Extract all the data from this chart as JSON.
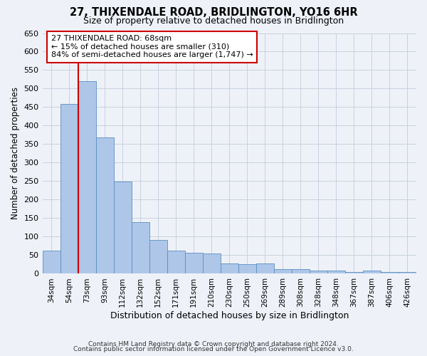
{
  "title": "27, THIXENDALE ROAD, BRIDLINGTON, YO16 6HR",
  "subtitle": "Size of property relative to detached houses in Bridlington",
  "xlabel": "Distribution of detached houses by size in Bridlington",
  "ylabel": "Number of detached properties",
  "bar_labels": [
    "34sqm",
    "54sqm",
    "73sqm",
    "93sqm",
    "112sqm",
    "132sqm",
    "152sqm",
    "171sqm",
    "191sqm",
    "210sqm",
    "230sqm",
    "250sqm",
    "269sqm",
    "289sqm",
    "308sqm",
    "328sqm",
    "348sqm",
    "367sqm",
    "387sqm",
    "406sqm",
    "426sqm"
  ],
  "bar_values": [
    63,
    458,
    521,
    369,
    249,
    140,
    92,
    63,
    57,
    55,
    27,
    26,
    27,
    12,
    12,
    8,
    8,
    5,
    8,
    5,
    5
  ],
  "bar_color": "#aec6e8",
  "bar_edge_color": "#5a8fc2",
  "vline_color": "#cc0000",
  "vline_x": 1.5,
  "annotation_text": "27 THIXENDALE ROAD: 68sqm\n← 15% of detached houses are smaller (310)\n84% of semi-detached houses are larger (1,747) →",
  "annotation_box_color": "#ffffff",
  "annotation_box_edge_color": "#cc0000",
  "ylim": [
    0,
    650
  ],
  "yticks": [
    0,
    50,
    100,
    150,
    200,
    250,
    300,
    350,
    400,
    450,
    500,
    550,
    600,
    650
  ],
  "footer_line1": "Contains HM Land Registry data © Crown copyright and database right 2024.",
  "footer_line2": "Contains public sector information licensed under the Open Government Licence v3.0.",
  "bg_color": "#eef2f8",
  "plot_bg_color": "#eef2f8",
  "grid_color": "#c8d0e0"
}
